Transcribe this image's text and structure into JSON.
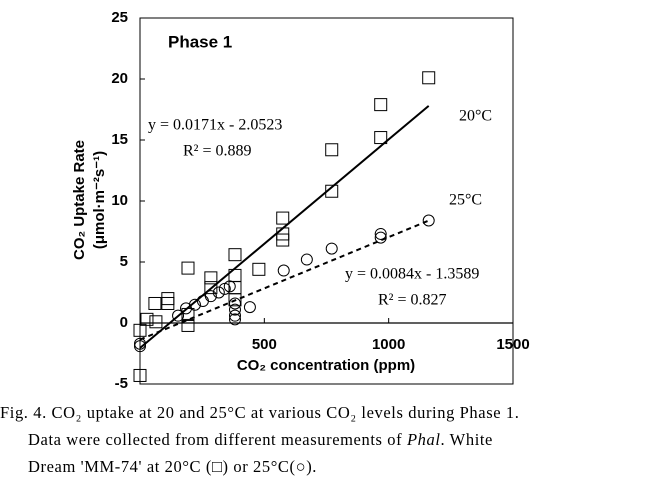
{
  "chart_data": {
    "type": "scatter",
    "title": "Phase 1",
    "xlabel": "CO₂ concentration (ppm)",
    "ylabel": [
      "CO₂ Uptake Rate",
      "(μmol·m⁻²s⁻¹)"
    ],
    "xlim": [
      0,
      1500
    ],
    "xticks": [
      500,
      1000,
      1500
    ],
    "ylim": [
      -5,
      25
    ],
    "yticks": [
      -5,
      0,
      5,
      10,
      15,
      20,
      25
    ],
    "series": [
      {
        "name": "20°C",
        "marker": "square",
        "color": "#000000",
        "x": [
          0,
          0,
          28,
          60,
          64,
          112,
          112,
          193,
          193,
          193,
          285,
          285,
          382,
          382,
          382,
          382,
          478,
          574,
          574,
          574,
          771,
          771,
          968,
          968,
          1161
        ],
        "values": [
          -4.3,
          -0.6,
          0.3,
          1.6,
          0.1,
          2.0,
          1.6,
          4.5,
          0.7,
          -0.2,
          3.7,
          2.9,
          5.6,
          3.9,
          2.9,
          1.9,
          4.4,
          8.6,
          7.3,
          6.8,
          14.2,
          10.8,
          17.9,
          15.2,
          20.1
        ],
        "fit": {
          "slope": 0.0171,
          "intercept": -2.0523,
          "style": "solid",
          "label": "y = 0.0171x - 2.0523",
          "r2_label": "R² = 0.889"
        }
      },
      {
        "name": "25°C",
        "marker": "circle",
        "color": "#000000",
        "x": [
          0,
          0,
          153,
          185,
          221,
          253,
          285,
          317,
          341,
          361,
          382,
          382,
          382,
          382,
          442,
          578,
          671,
          771,
          968,
          968,
          1161
        ],
        "values": [
          -1.7,
          -1.9,
          0.6,
          1.2,
          1.5,
          1.8,
          2.2,
          2.5,
          2.8,
          3.0,
          1.1,
          0.6,
          0.3,
          1.6,
          1.3,
          4.3,
          5.2,
          6.1,
          7.3,
          7.0,
          8.4
        ],
        "fit": {
          "slope": 0.0084,
          "intercept": -1.3589,
          "style": "dashed",
          "label": "y = 0.0084x - 1.3589",
          "r2_label": "R² = 0.827"
        }
      }
    ]
  },
  "caption": {
    "line1": "Fig. 4. CO₂ uptake at 20 and 25°C at various CO₂ levels during Phase 1.",
    "line2a": "Data were collected from different measurements of ",
    "line2b": "Phal",
    "line2c": ". White",
    "line3": "Dream 'MM-74' at 20°C (□) or 25°C(○)."
  }
}
